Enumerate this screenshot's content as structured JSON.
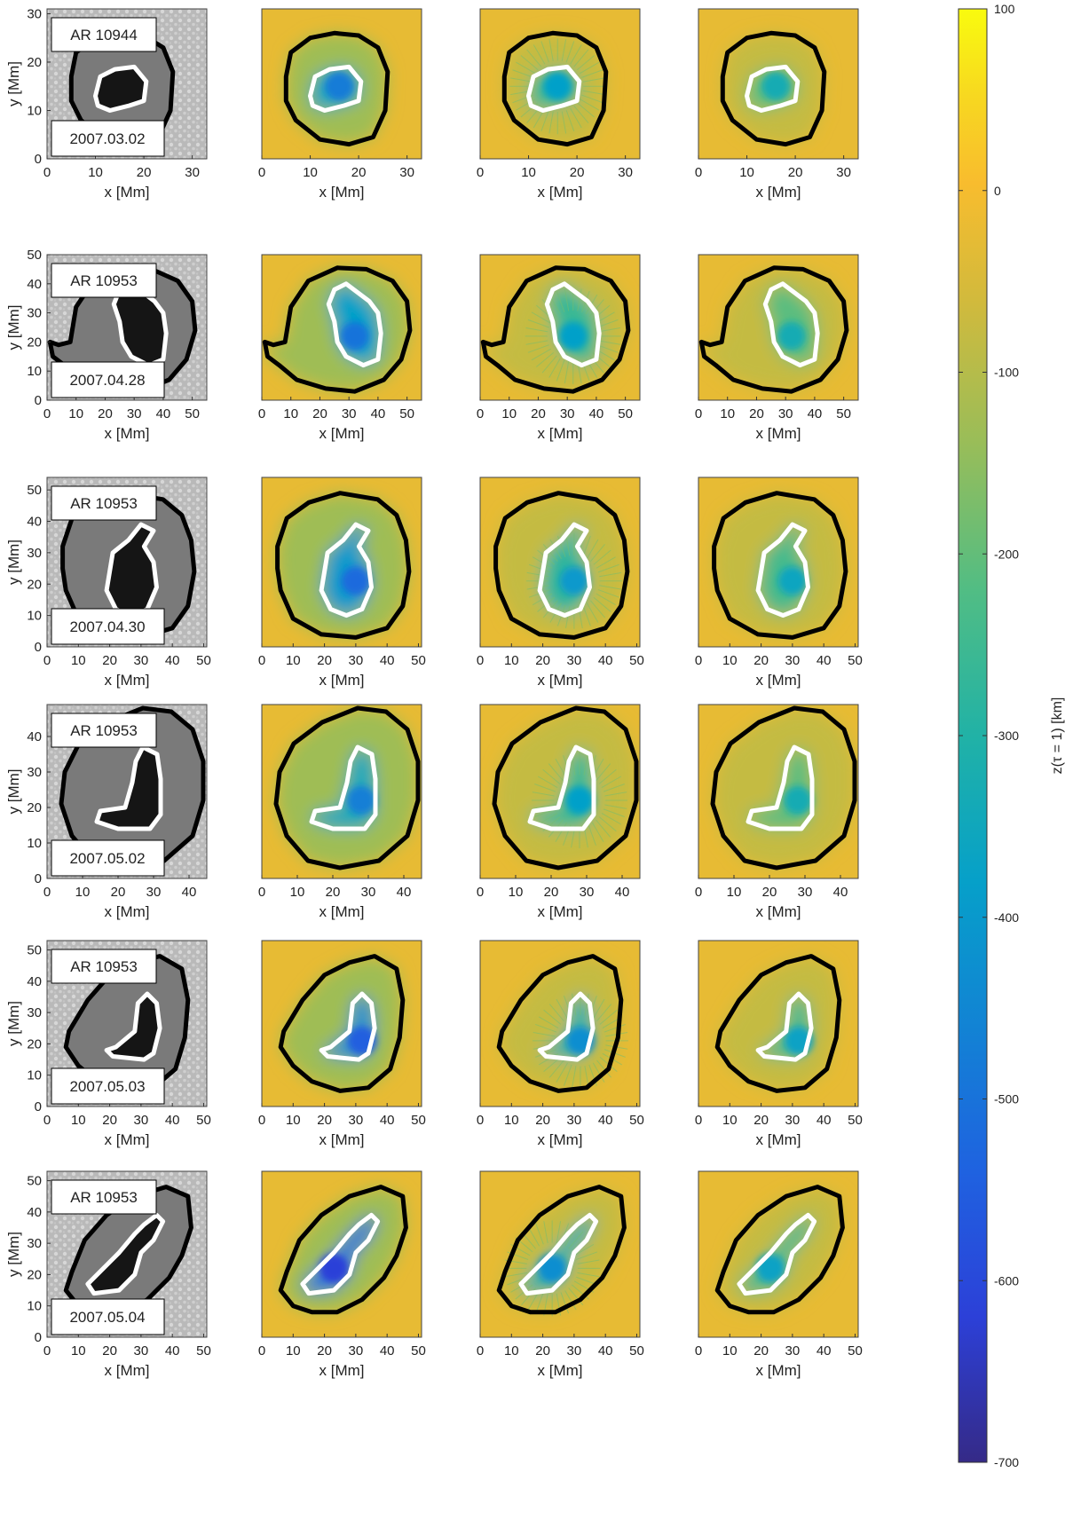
{
  "chart_data": {
    "type": "heatmap",
    "title": "",
    "layout": "6 rows x 4 columns of sunspot maps with shared colorbar",
    "xlabel": "x [Mm]",
    "ylabel": "y [Mm]",
    "colorbar": {
      "label": "z(τ = 1) [km]",
      "range": [
        -700,
        100
      ],
      "ticks": [
        100,
        0,
        -100,
        -200,
        -300,
        -400,
        -500,
        -600,
        -700
      ],
      "tick_labels": [
        "100",
        "0",
        "-100",
        "-200",
        "-300",
        "-400",
        "-500",
        "-600",
        "-700"
      ],
      "colormap": "parula"
    },
    "rows": [
      {
        "region": "AR 10944",
        "date": "2007.03.02",
        "xlim": [
          0,
          33
        ],
        "ylim": [
          0,
          31
        ],
        "xticks": [
          0,
          10,
          20,
          30
        ],
        "yticks": [
          0,
          10,
          20,
          30
        ],
        "xtick_labels": [
          "0",
          "10",
          "20",
          "30"
        ],
        "ytick_labels": [
          "0",
          "10",
          "20",
          "30"
        ],
        "center": [
          16,
          15
        ],
        "umbra_depth_km": [
          -480,
          -380,
          -330
        ],
        "penumbra_outline": [
          [
            5,
            17
          ],
          [
            6,
            22
          ],
          [
            10,
            25
          ],
          [
            15,
            26
          ],
          [
            20,
            25.5
          ],
          [
            24,
            23
          ],
          [
            26,
            18
          ],
          [
            25.5,
            10
          ],
          [
            23,
            4.5
          ],
          [
            18,
            3
          ],
          [
            12,
            4
          ],
          [
            7,
            8
          ],
          [
            5,
            12
          ]
        ],
        "umbra_outline": [
          [
            10,
            13
          ],
          [
            11,
            17
          ],
          [
            14,
            18.5
          ],
          [
            18,
            19
          ],
          [
            20.5,
            16
          ],
          [
            20,
            12
          ],
          [
            17,
            11
          ],
          [
            13,
            10
          ],
          [
            10.5,
            11
          ]
        ]
      },
      {
        "region": "AR 10953",
        "date": "2007.04.28",
        "xlim": [
          0,
          55
        ],
        "ylim": [
          0,
          50
        ],
        "xticks": [
          0,
          10,
          20,
          30,
          40,
          50
        ],
        "yticks": [
          0,
          10,
          20,
          30,
          40,
          50
        ],
        "xtick_labels": [
          "0",
          "10",
          "20",
          "30",
          "40",
          "50"
        ],
        "ytick_labels": [
          "0",
          "10",
          "20",
          "30",
          "40",
          "50"
        ],
        "center": [
          32,
          22
        ],
        "umbra_depth_km": [
          -500,
          -380,
          -330
        ],
        "penumbra_outline": [
          [
            8,
            20
          ],
          [
            10,
            32
          ],
          [
            16,
            41
          ],
          [
            26,
            45.5
          ],
          [
            36,
            45
          ],
          [
            45,
            41
          ],
          [
            50,
            34
          ],
          [
            51,
            24
          ],
          [
            48,
            14
          ],
          [
            42,
            7
          ],
          [
            32,
            3
          ],
          [
            22,
            4
          ],
          [
            12,
            7
          ],
          [
            6,
            12
          ],
          [
            2,
            15
          ],
          [
            1,
            20
          ],
          [
            4,
            19
          ]
        ],
        "umbra_outline": [
          [
            23,
            33
          ],
          [
            25,
            38
          ],
          [
            29,
            40
          ],
          [
            33,
            37
          ],
          [
            37,
            34
          ],
          [
            40,
            30
          ],
          [
            41,
            23
          ],
          [
            40,
            14
          ],
          [
            35,
            12
          ],
          [
            29,
            15
          ],
          [
            26,
            20
          ],
          [
            25,
            27
          ]
        ]
      },
      {
        "region": "AR 10953",
        "date": "2007.04.30",
        "xlim": [
          0,
          51
        ],
        "ylim": [
          0,
          54
        ],
        "xticks": [
          0,
          10,
          20,
          30,
          40,
          50
        ],
        "yticks": [
          0,
          10,
          20,
          30,
          40,
          50
        ],
        "xtick_labels": [
          "0",
          "10",
          "20",
          "30",
          "40",
          "50"
        ],
        "ytick_labels": [
          "0",
          "10",
          "20",
          "30",
          "40",
          "50"
        ],
        "center": [
          30,
          21
        ],
        "umbra_depth_km": [
          -520,
          -400,
          -360
        ],
        "penumbra_outline": [
          [
            5,
            32
          ],
          [
            8,
            41
          ],
          [
            15,
            46
          ],
          [
            25,
            49
          ],
          [
            37,
            47
          ],
          [
            43,
            42
          ],
          [
            46,
            34
          ],
          [
            47,
            24
          ],
          [
            45,
            13
          ],
          [
            40,
            6
          ],
          [
            30,
            3
          ],
          [
            19,
            4
          ],
          [
            10,
            9
          ],
          [
            6,
            18
          ],
          [
            5,
            25
          ]
        ],
        "umbra_outline": [
          [
            22,
            12
          ],
          [
            19,
            18
          ],
          [
            21,
            30
          ],
          [
            26,
            34
          ],
          [
            30,
            39
          ],
          [
            34,
            37
          ],
          [
            31,
            32
          ],
          [
            34,
            27
          ],
          [
            35,
            19
          ],
          [
            32,
            12
          ],
          [
            27,
            10
          ]
        ]
      },
      {
        "region": "AR 10953",
        "date": "2007.05.02",
        "xlim": [
          0,
          45
        ],
        "ylim": [
          0,
          49
        ],
        "xticks": [
          0,
          10,
          20,
          30,
          40
        ],
        "yticks": [
          0,
          10,
          20,
          30,
          40
        ],
        "xtick_labels": [
          "0",
          "10",
          "20",
          "30",
          "40"
        ],
        "ytick_labels": [
          "0",
          "10",
          "20",
          "30",
          "40"
        ],
        "center": [
          28,
          22
        ],
        "umbra_depth_km": [
          -470,
          -380,
          -330
        ],
        "penumbra_outline": [
          [
            5,
            30
          ],
          [
            9,
            38
          ],
          [
            17,
            44
          ],
          [
            27,
            48
          ],
          [
            35,
            47
          ],
          [
            41,
            42
          ],
          [
            44,
            33
          ],
          [
            44,
            22
          ],
          [
            41,
            12
          ],
          [
            33,
            5
          ],
          [
            22,
            3
          ],
          [
            13,
            5
          ],
          [
            7,
            12
          ],
          [
            4,
            21
          ]
        ],
        "umbra_outline": [
          [
            14,
            16
          ],
          [
            15,
            19
          ],
          [
            22,
            20
          ],
          [
            24,
            27
          ],
          [
            25,
            33
          ],
          [
            27,
            37
          ],
          [
            31,
            35
          ],
          [
            32,
            28
          ],
          [
            32,
            18
          ],
          [
            29,
            14
          ],
          [
            20,
            14
          ]
        ]
      },
      {
        "region": "AR 10953",
        "date": "2007.05.03",
        "xlim": [
          0,
          51
        ],
        "ylim": [
          0,
          53
        ],
        "xticks": [
          0,
          10,
          20,
          30,
          40,
          50
        ],
        "yticks": [
          0,
          10,
          20,
          30,
          40,
          50
        ],
        "xtick_labels": [
          "0",
          "10",
          "20",
          "30",
          "40",
          "50"
        ],
        "ytick_labels": [
          "0",
          "10",
          "20",
          "30",
          "40",
          "50"
        ],
        "center": [
          32,
          21
        ],
        "umbra_depth_km": [
          -550,
          -430,
          -370
        ],
        "penumbra_outline": [
          [
            7,
            24
          ],
          [
            13,
            34
          ],
          [
            20,
            42
          ],
          [
            28,
            46
          ],
          [
            36,
            48
          ],
          [
            43,
            44
          ],
          [
            45,
            34
          ],
          [
            44,
            22
          ],
          [
            41,
            12
          ],
          [
            34,
            6
          ],
          [
            25,
            5
          ],
          [
            16,
            8
          ],
          [
            10,
            13
          ],
          [
            6,
            19
          ]
        ],
        "umbra_outline": [
          [
            19,
            18
          ],
          [
            21,
            16
          ],
          [
            31,
            15
          ],
          [
            34,
            17
          ],
          [
            36,
            25
          ],
          [
            35,
            33
          ],
          [
            32,
            36
          ],
          [
            29,
            33
          ],
          [
            28,
            24
          ],
          [
            22,
            19
          ]
        ]
      },
      {
        "region": "AR 10953",
        "date": "2007.05.04",
        "xlim": [
          0,
          51
        ],
        "ylim": [
          0,
          53
        ],
        "xticks": [
          0,
          10,
          20,
          30,
          40,
          50
        ],
        "yticks": [
          0,
          10,
          20,
          30,
          40,
          50
        ],
        "xtick_labels": [
          "0",
          "10",
          "20",
          "30",
          "40",
          "50"
        ],
        "ytick_labels": [
          "0",
          "10",
          "20",
          "30",
          "40",
          "50"
        ],
        "center": [
          23,
          22
        ],
        "umbra_depth_km": [
          -620,
          -430,
          -370
        ],
        "penumbra_outline": [
          [
            8,
            21
          ],
          [
            12,
            31
          ],
          [
            19,
            39
          ],
          [
            28,
            45
          ],
          [
            38,
            48
          ],
          [
            45,
            45
          ],
          [
            46,
            35
          ],
          [
            43,
            26
          ],
          [
            39,
            19
          ],
          [
            32,
            12
          ],
          [
            24,
            8
          ],
          [
            16,
            8
          ],
          [
            10,
            10
          ],
          [
            6,
            15
          ]
        ],
        "umbra_outline": [
          [
            13,
            17
          ],
          [
            15,
            14
          ],
          [
            23,
            15
          ],
          [
            28,
            20
          ],
          [
            30,
            27
          ],
          [
            34,
            31
          ],
          [
            37,
            37
          ],
          [
            35,
            39
          ],
          [
            31,
            36
          ],
          [
            28,
            33
          ],
          [
            23,
            27
          ],
          [
            17,
            21
          ]
        ]
      }
    ]
  }
}
